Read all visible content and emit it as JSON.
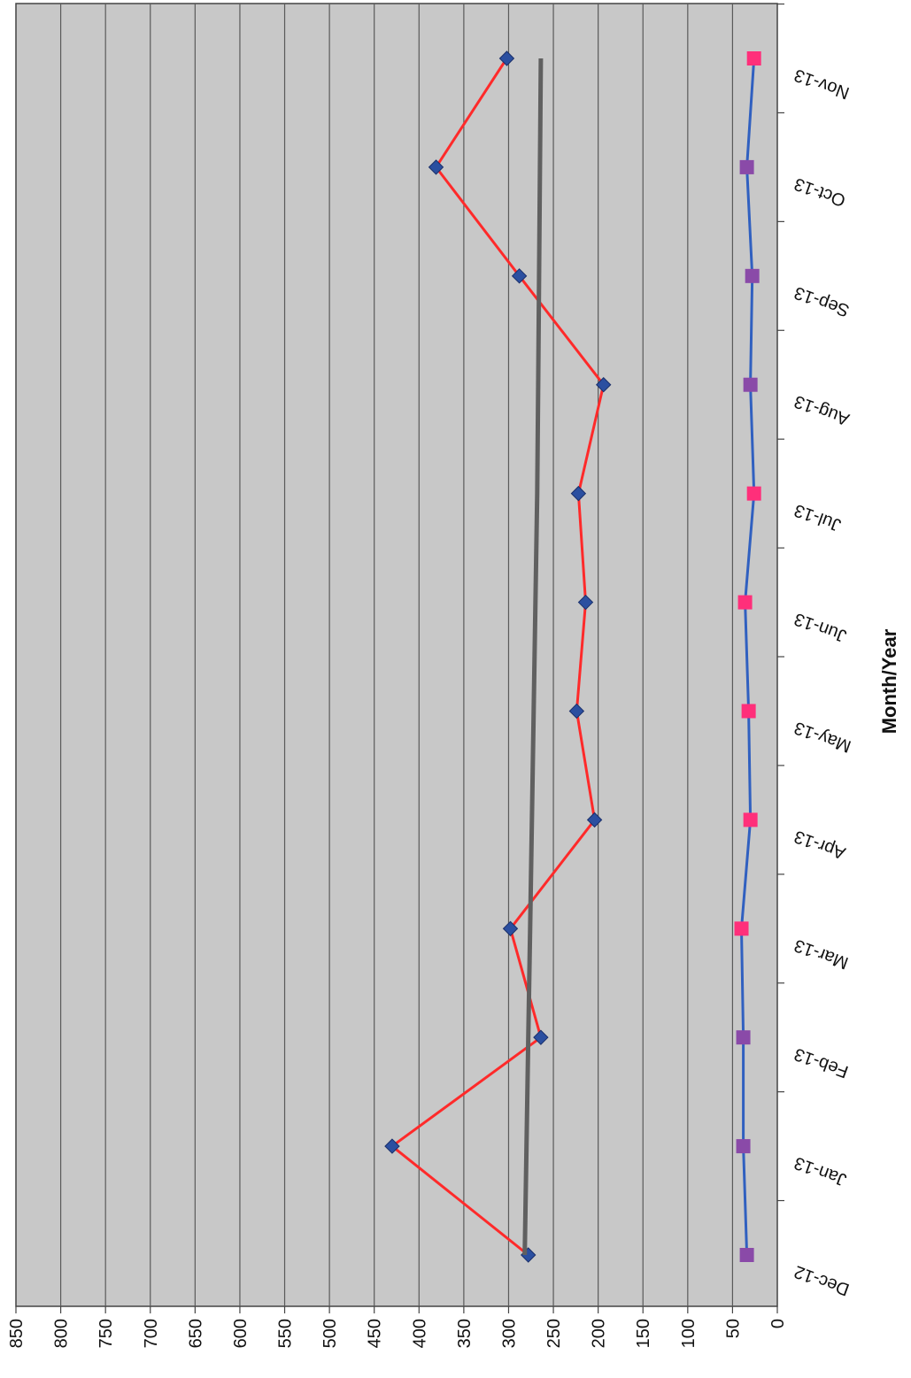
{
  "chart_data": {
    "type": "line",
    "orientation": "rotated-90",
    "title": "",
    "xlabel": "Month/Year",
    "ylabel": "",
    "categories": [
      "Dec-12",
      "Jan-13",
      "Feb-13",
      "Mar-13",
      "Apr-13",
      "May-13",
      "Jun-13",
      "Jul-13",
      "Aug-13",
      "Sep-13",
      "Oct-13",
      "Nov-13"
    ],
    "yticks": [
      "0",
      "50",
      "100",
      "150",
      "200",
      "250",
      "300",
      "350",
      "400",
      "450",
      "500",
      "550",
      "600",
      "650",
      "700",
      "750",
      "800",
      "850"
    ],
    "ylim": [
      0,
      850
    ],
    "grid": true,
    "legend": "none",
    "series": [
      {
        "values": [
          278,
          430,
          264,
          298,
          204,
          224,
          214,
          222,
          194,
          288,
          381,
          302
        ],
        "color": "#ff2a2a",
        "marker": "diamond",
        "marker_color": "#2b4fa0"
      },
      {
        "values": [
          282,
          280,
          278,
          276,
          274,
          272,
          270,
          268,
          267,
          266,
          265,
          264
        ],
        "color": "#606060",
        "marker": "none"
      },
      {
        "values": [
          34,
          38,
          38,
          40,
          30,
          32,
          36,
          26,
          30,
          28,
          34,
          26
        ],
        "color": "#3060c0",
        "marker": "square",
        "marker_color": "#8a4aa8"
      }
    ],
    "marker_square_colors": [
      "#8a4aa8",
      "#8a4aa8",
      "#8a4aa8",
      "#ff2f7a",
      "#ff2f7a",
      "#ff2f7a",
      "#ff2f7a",
      "#ff2f7a",
      "#8a4aa8",
      "#8a4aa8",
      "#8a4aa8",
      "#ff2f7a"
    ],
    "colors": {
      "plot_bg": "#c8c8c8",
      "grid": "#5a5a5a",
      "axis": "#444444"
    }
  }
}
